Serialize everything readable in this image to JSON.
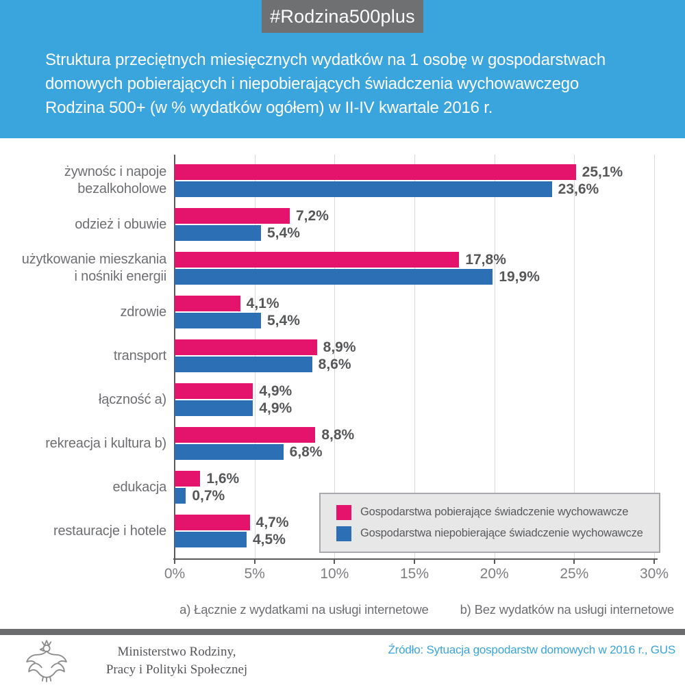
{
  "header": {
    "badge": "#Rodzina500plus",
    "title_lines": [
      "Struktura przeciętnych miesięcznych wydatków na 1 osobę w gospodarstwach",
      "domowych pobierających i niepobierających świadczenia wychowawczego",
      "Rodzina 500+ (w % wydatków ogółem) w II-IV kwartale 2016 r."
    ]
  },
  "chart_data": {
    "type": "bar",
    "orientation": "horizontal",
    "title": "Struktura przeciętnych miesięcznych wydatków na 1 osobę w gospodarstwach domowych pobierających i niepobierających świadczenia wychowawczego Rodzina 500+ (w % wydatków ogółem) w II-IV kwartale 2016 r.",
    "xlabel": "",
    "ylabel": "",
    "xlim": [
      0,
      30
    ],
    "x_ticks": [
      "0%",
      "5%",
      "10%",
      "15%",
      "20%",
      "25%",
      "30%"
    ],
    "grid": true,
    "legend_position": "inside-bottom-right",
    "categories": [
      "żywnośc i napoje bezalkoholowe",
      "odzież i obuwie",
      "użytkowanie mieszkania i nośniki energii",
      "zdrowie",
      "transport",
      "łączność a)",
      "rekreacja i kultura b)",
      "edukacja",
      "restauracje i hotele"
    ],
    "category_lines": [
      [
        "żywnośc i napoje",
        "bezalkoholowe"
      ],
      [
        "odzież i obuwie"
      ],
      [
        "użytkowanie mieszkania",
        "i nośniki energii"
      ],
      [
        "zdrowie"
      ],
      [
        "transport"
      ],
      [
        "łączność a)"
      ],
      [
        "rekreacja i kultura b)"
      ],
      [
        "edukacja"
      ],
      [
        "restauracje i hotele"
      ]
    ],
    "series": [
      {
        "name": "Gospodarstwa pobierające świadczenie wychowawcze",
        "color": "#E4136C",
        "values": [
          25.1,
          7.2,
          17.8,
          4.1,
          8.9,
          4.9,
          8.8,
          1.6,
          4.7
        ],
        "labels": [
          "25,1%",
          "7,2%",
          "17,8%",
          "4,1%",
          "8,9%",
          "4,9%",
          "8,8%",
          "1,6%",
          "4,7%"
        ]
      },
      {
        "name": "Gospodarstwa niepobierające świadczenie wychowawcze",
        "color": "#2C6FB5",
        "values": [
          23.6,
          5.4,
          19.9,
          5.4,
          8.6,
          4.9,
          6.8,
          0.7,
          4.5
        ],
        "labels": [
          "23,6%",
          "5,4%",
          "19,9%",
          "5,4%",
          "8,6%",
          "4,9%",
          "6,8%",
          "0,7%",
          "4,5%"
        ]
      }
    ]
  },
  "footnotes": {
    "a": "a) Łącznie z wydatkami na usługi internetowe",
    "b": "b) Bez wydatków na usługi internetowe"
  },
  "footer": {
    "ministry_line1": "Ministerstwo Rodziny,",
    "ministry_line2": "Pracy i Polityki Społecznej",
    "source": "Źródło: Sytuacja gospodarstw domowych w 2016 r., GUS"
  },
  "colors": {
    "header_bg": "#3AA4DC",
    "badge_bg": "#6F7071",
    "bar_receiving": "#E4136C",
    "bar_not_receiving": "#2C6FB5",
    "axis": "#58595B",
    "gridline": "#D8D8D9",
    "legend_bg": "#E7E7E8",
    "legend_border": "#A7A9AC",
    "divider": "#6B6C6E",
    "source_text": "#3AA4DC"
  }
}
